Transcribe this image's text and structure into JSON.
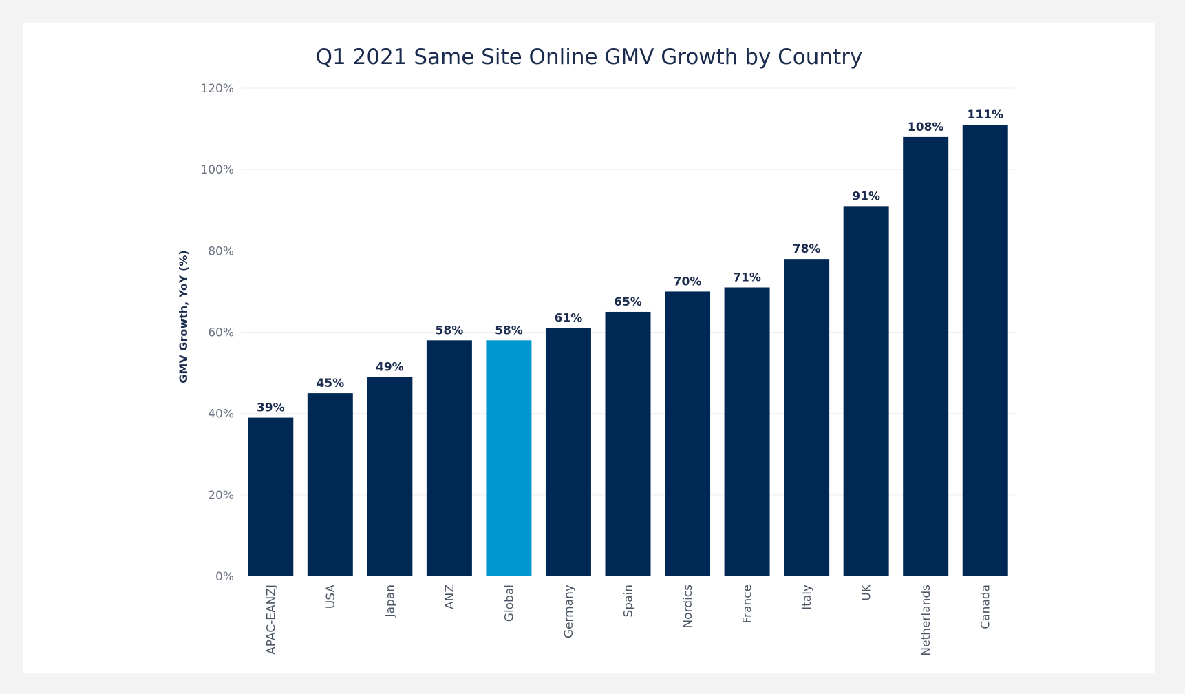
{
  "chart_data": {
    "type": "bar",
    "title": "Q1 2021 Same Site Online GMV Growth by Country",
    "xlabel": "",
    "ylabel": "GMV Growth, YoY (%)",
    "ylim": [
      0,
      120
    ],
    "yticks": [
      {
        "value": 0,
        "label": "0%"
      },
      {
        "value": 20,
        "label": "20%"
      },
      {
        "value": 40,
        "label": "40%"
      },
      {
        "value": 60,
        "label": "60%"
      },
      {
        "value": 80,
        "label": "80%"
      },
      {
        "value": 100,
        "label": "100%"
      },
      {
        "value": 120,
        "label": "120%"
      }
    ],
    "grid": true,
    "legend": "none",
    "colors": {
      "default": "#002855",
      "highlight": "#0097d0"
    },
    "highlight_category": "Global",
    "categories": [
      "APAC-EANZJ",
      "USA",
      "Japan",
      "ANZ",
      "Global",
      "Germany",
      "Spain",
      "Nordics",
      "France",
      "Italy",
      "UK",
      "Netherlands",
      "Canada"
    ],
    "values": [
      39,
      45,
      49,
      58,
      58,
      61,
      65,
      70,
      71,
      78,
      91,
      108,
      111
    ],
    "data_labels": [
      "39%",
      "45%",
      "49%",
      "58%",
      "58%",
      "61%",
      "65%",
      "70%",
      "71%",
      "78%",
      "91%",
      "108%",
      "111%"
    ]
  }
}
